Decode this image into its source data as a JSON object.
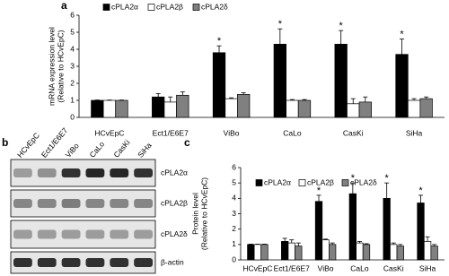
{
  "panel_labels": [
    "a",
    "b",
    "c"
  ],
  "chart_data": [
    {
      "type": "bar",
      "ylabel": [
        "mRNA expression level",
        "(Relative to HCvEpC)"
      ],
      "categories": [
        "HCvEpC",
        "Ect1/E6E7",
        "ViBo",
        "CaLo",
        "CasKi",
        "SiHa"
      ],
      "series": [
        {
          "name": "cPLA2α",
          "color": "#000000",
          "values": [
            1,
            1.2,
            3.8,
            4.3,
            4.3,
            3.7
          ],
          "errors": [
            0.02,
            0.2,
            0.4,
            0.9,
            0.8,
            0.9
          ]
        },
        {
          "name": "cPLA2β",
          "color": "#ffffff",
          "values": [
            1,
            0.9,
            1.1,
            1.0,
            0.8,
            1.0
          ],
          "errors": [
            0.02,
            0.3,
            0.05,
            0.05,
            0.3,
            0.1
          ]
        },
        {
          "name": "cPLA2δ",
          "color": "#808080",
          "values": [
            1,
            1.3,
            1.35,
            1.0,
            0.9,
            1.1
          ],
          "errors": [
            0.02,
            0.2,
            0.1,
            0.05,
            0.3,
            0.1
          ]
        }
      ],
      "significance_labels": [
        null,
        null,
        "*",
        "*",
        "*",
        "*"
      ],
      "edge_color": "#000000",
      "ylim": [
        0,
        6
      ],
      "yticks": [
        0,
        1,
        2,
        3,
        4,
        5,
        6
      ]
    },
    {
      "type": "bar",
      "ylabel": [
        "Protein level",
        "(Relative to HCvEpC)"
      ],
      "categories": [
        "HCvEpC",
        "Ect1/E6E7",
        "ViBo",
        "CaLo",
        "CasKi",
        "SiHa"
      ],
      "series": [
        {
          "name": "cPLA2α",
          "color": "#000000",
          "values": [
            1,
            1.2,
            3.8,
            4.3,
            4.0,
            3.7
          ],
          "errors": [
            0.02,
            0.2,
            0.4,
            0.7,
            1.0,
            0.5
          ]
        },
        {
          "name": "cPLA2β",
          "color": "#ffffff",
          "values": [
            1,
            1.1,
            1.3,
            1.1,
            1.0,
            1.2
          ],
          "errors": [
            0.02,
            0.2,
            0.05,
            0.1,
            0.1,
            0.3
          ]
        },
        {
          "name": "cPLA2δ",
          "color": "#808080",
          "values": [
            1,
            0.9,
            1.0,
            1.0,
            0.9,
            0.9
          ],
          "errors": [
            0.02,
            0.2,
            0.1,
            0.05,
            0.1,
            0.1
          ]
        }
      ],
      "significance_labels": [
        null,
        null,
        "*",
        "*",
        "*",
        "*"
      ],
      "edge_color": "#000000",
      "ylim": [
        0,
        6
      ],
      "yticks": [
        0,
        1,
        2,
        3,
        4,
        5,
        6
      ]
    }
  ],
  "blot": {
    "lanes": [
      "HCvEpC",
      "Ect1/E6E7",
      "ViBo",
      "CaLo",
      "CasKi",
      "SiHa"
    ],
    "bands": [
      "cPLA2α",
      "cPLA2β",
      "cPLA2δ",
      "β-actin"
    ]
  }
}
